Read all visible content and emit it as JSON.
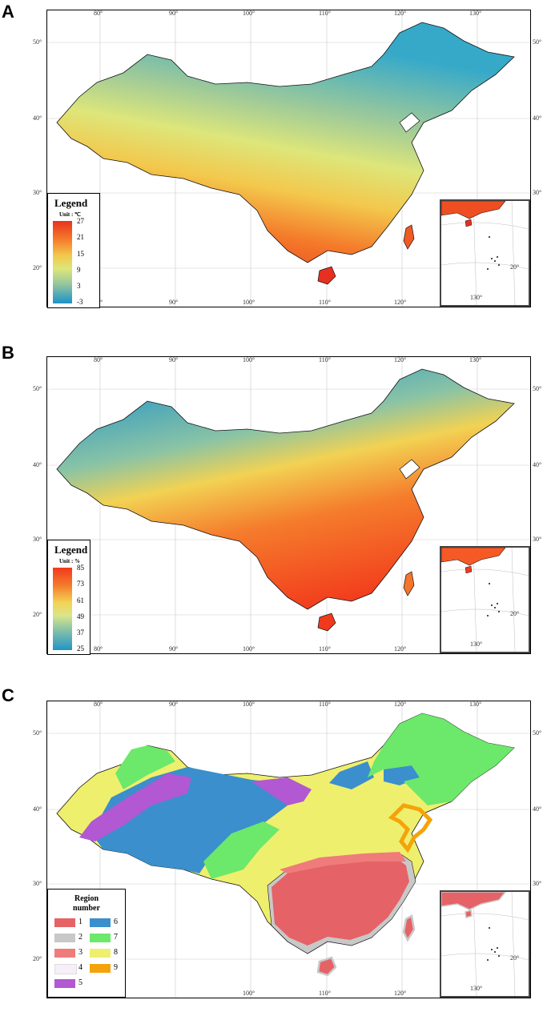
{
  "panels": [
    {
      "letter": "A",
      "legend_title": "Legend",
      "legend_unit": "Unit : ℃",
      "legend_values": [
        "27",
        "21",
        "15",
        "9",
        "3",
        "-3"
      ]
    },
    {
      "letter": "B",
      "legend_title": "Legend",
      "legend_unit": "Unit : %",
      "legend_values": [
        "85",
        "73",
        "61",
        "49",
        "37",
        "25"
      ]
    },
    {
      "letter": "C",
      "legend_title": "Region\nnumber"
    }
  ],
  "region_legend": {
    "title": "Region\nnumber",
    "items": [
      {
        "label": "1",
        "color": "#e56266"
      },
      {
        "label": "2",
        "color": "#c8c8c8"
      },
      {
        "label": "3",
        "color": "#f07b7b"
      },
      {
        "label": "4",
        "color": "#f6eef9"
      },
      {
        "label": "5",
        "color": "#b158d2"
      },
      {
        "label": "6",
        "color": "#3b8fcd"
      },
      {
        "label": "7",
        "color": "#6ce86b"
      },
      {
        "label": "8",
        "color": "#efef6e"
      },
      {
        "label": "9",
        "color": "#f5a30a"
      }
    ]
  },
  "axes": {
    "longitude_labels": [
      "80°",
      "90°",
      "100°",
      "110°",
      "120°",
      "130°"
    ],
    "latitude_labels": [
      "50°",
      "40°",
      "30°",
      "20°"
    ],
    "inset_latitude_label": "20°",
    "inset_longitude_label": "130°"
  },
  "colors": {
    "temp_gradient": [
      "#e8321e",
      "#f47a2a",
      "#f3c84c",
      "#dde67a",
      "#9cc99a",
      "#36a9c9",
      "#1b93c9"
    ],
    "humidity_gradient": [
      "#f2391c",
      "#f57d2c",
      "#f2d253",
      "#d9e58a",
      "#89c3a6",
      "#34a7c8",
      "#2394c7"
    ]
  }
}
